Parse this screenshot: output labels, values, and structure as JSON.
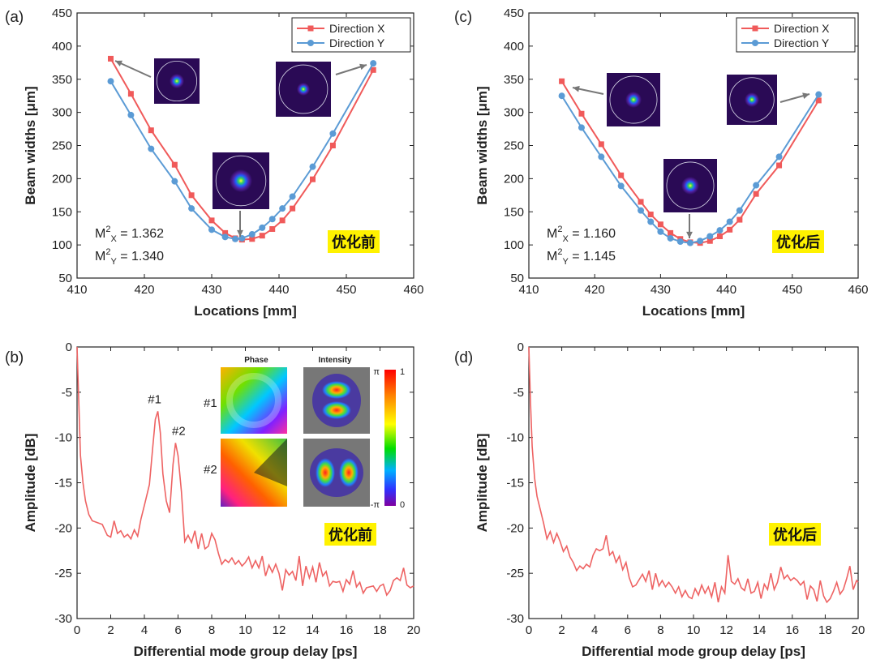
{
  "colors": {
    "direction_x": "#f05a5a",
    "direction_y": "#5b9bd5",
    "spectrum": "#ee6363",
    "highlight": "#fff200"
  },
  "chart_data": [
    {
      "panel": "(a)",
      "type": "line",
      "xlabel": "Locations [mm]",
      "ylabel": "Beam widths [μm]",
      "xlim": [
        410,
        460
      ],
      "ylim": [
        50,
        450
      ],
      "xticks": [
        "410",
        "420",
        "430",
        "440",
        "450",
        "460"
      ],
      "yticks": [
        "50",
        "100",
        "150",
        "200",
        "250",
        "300",
        "350",
        "400",
        "450"
      ],
      "legend": "top-right",
      "annotation": "优化前",
      "m2": {
        "x_label": "X",
        "x_value": "= 1.362",
        "y_label": "Y",
        "y_value": "= 1.340"
      },
      "series": [
        {
          "name": "Direction X",
          "x": [
            415,
            418,
            421,
            424.5,
            427,
            430,
            432,
            433.5,
            434.5,
            436,
            437.5,
            439,
            440.5,
            442,
            445,
            448,
            454
          ],
          "y": [
            381,
            328,
            273,
            221,
            175,
            137,
            118,
            110,
            108,
            109,
            114,
            124,
            137,
            155,
            199,
            250,
            364
          ]
        },
        {
          "name": "Direction Y",
          "x": [
            415,
            418,
            421,
            424.5,
            427,
            430,
            432,
            433.5,
            434.5,
            436,
            437.5,
            439,
            440.5,
            442,
            445,
            448,
            454
          ],
          "y": [
            347,
            296,
            245,
            196,
            155,
            123,
            112,
            109,
            110,
            116,
            126,
            139,
            155,
            173,
            218,
            268,
            374
          ]
        }
      ]
    },
    {
      "panel": "(c)",
      "type": "line",
      "xlabel": "Locations [mm]",
      "ylabel": "Beam widths [μm]",
      "xlim": [
        410,
        460
      ],
      "ylim": [
        50,
        450
      ],
      "xticks": [
        "410",
        "420",
        "430",
        "440",
        "450",
        "460"
      ],
      "yticks": [
        "50",
        "100",
        "150",
        "200",
        "250",
        "300",
        "350",
        "400",
        "450"
      ],
      "legend": "top-right",
      "annotation": "优化后",
      "m2": {
        "x_label": "X",
        "x_value": "= 1.160",
        "y_label": "Y",
        "y_value": "= 1.145"
      },
      "series": [
        {
          "name": "Direction X",
          "x": [
            415,
            418,
            421,
            424,
            427,
            428.5,
            430,
            431.5,
            433,
            434.5,
            436,
            437.5,
            439,
            440.5,
            442,
            444.5,
            448,
            454
          ],
          "y": [
            347,
            298,
            252,
            205,
            165,
            146,
            131,
            118,
            109,
            104,
            103,
            106,
            113,
            123,
            138,
            177,
            220,
            318
          ]
        },
        {
          "name": "Direction Y",
          "x": [
            415,
            418,
            421,
            424,
            427,
            428.5,
            430,
            431.5,
            433,
            434.5,
            436,
            437.5,
            439,
            440.5,
            442,
            444.5,
            448,
            454
          ],
          "y": [
            325,
            277,
            233,
            189,
            152,
            135,
            120,
            110,
            105,
            103,
            106,
            113,
            122,
            135,
            152,
            190,
            233,
            327
          ]
        }
      ]
    },
    {
      "panel": "(b)",
      "type": "line",
      "xlabel": "Differential mode group delay [ps]",
      "ylabel": "Amplitude [dB]",
      "xlim": [
        0,
        20
      ],
      "ylim": [
        -30,
        0
      ],
      "xticks": [
        "0",
        "2",
        "4",
        "6",
        "8",
        "10",
        "12",
        "14",
        "16",
        "18",
        "20"
      ],
      "yticks": [
        "-30",
        "-25",
        "-20",
        "-15",
        "-10",
        "-5",
        "0"
      ],
      "annotation": "优化前",
      "peaks": [
        {
          "label": "#1",
          "x": 4.8,
          "y": -7.1
        },
        {
          "label": "#2",
          "x": 5.85,
          "y": -10.6
        }
      ],
      "inset": {
        "phase_header": "Phase",
        "intensity_header": "Intensity",
        "row1": "#1",
        "row2": "#2",
        "cb_top": "π",
        "cb_bottom": "-π",
        "cb_max": "1",
        "cb_min": "0"
      },
      "series": [
        {
          "x": [
            0,
            0.1,
            0.2,
            0.35,
            0.5,
            0.7,
            0.9,
            1.2,
            1.5,
            1.8,
            2.0,
            2.2,
            2.4,
            2.6,
            2.8,
            3.0,
            3.2,
            3.4,
            3.6,
            3.8,
            4.0,
            4.3,
            4.5,
            4.65,
            4.8,
            4.95,
            5.1,
            5.3,
            5.5,
            5.7,
            5.85,
            6.0,
            6.2,
            6.4,
            6.6,
            6.8,
            7.0,
            7.2,
            7.4,
            7.6,
            7.8,
            8.0,
            8.2,
            8.4,
            8.6,
            8.8,
            9.0,
            9.2,
            9.4,
            9.6,
            9.8,
            10.0,
            10.2,
            10.4,
            10.6,
            10.8,
            11.0,
            11.2,
            11.4,
            11.6,
            11.8,
            12.0,
            12.2,
            12.4,
            12.6,
            12.8,
            13.0,
            13.2,
            13.4,
            13.6,
            13.8,
            14.0,
            14.2,
            14.4,
            14.6,
            14.8,
            15.0,
            15.2,
            15.4,
            15.6,
            15.8,
            16.0,
            16.2,
            16.4,
            16.6,
            16.8,
            17.0,
            17.2,
            17.4,
            17.6,
            17.8,
            18.0,
            18.2,
            18.4,
            18.6,
            18.8,
            19.0,
            19.2,
            19.4,
            19.6,
            19.8,
            20.0
          ],
          "y": [
            0,
            -6,
            -12,
            -15,
            -17,
            -18.5,
            -19.2,
            -19.4,
            -19.6,
            -20.8,
            -21.0,
            -19.2,
            -20.6,
            -20.3,
            -21.0,
            -20.7,
            -21.2,
            -20.2,
            -20.9,
            -19.0,
            -17.5,
            -15.2,
            -11.0,
            -8.0,
            -7.1,
            -9.5,
            -14.0,
            -17.0,
            -18.3,
            -13.0,
            -10.6,
            -12.0,
            -16.0,
            -21.5,
            -20.8,
            -21.6,
            -20.3,
            -22.3,
            -20.6,
            -22.3,
            -22.0,
            -20.6,
            -21.3,
            -22.8,
            -24.0,
            -23.5,
            -23.8,
            -23.3,
            -24.0,
            -23.6,
            -24.2,
            -23.8,
            -23.2,
            -24.4,
            -23.6,
            -24.4,
            -23.1,
            -25.3,
            -24.1,
            -24.9,
            -24.0,
            -25.0,
            -26.9,
            -24.6,
            -25.2,
            -24.8,
            -25.8,
            -23.1,
            -26.4,
            -24.2,
            -25.5,
            -24.3,
            -26.0,
            -23.8,
            -25.3,
            -24.8,
            -26.4,
            -25.9,
            -26.0,
            -25.9,
            -27.0,
            -25.7,
            -26.2,
            -24.7,
            -26.5,
            -26.0,
            -27.2,
            -26.6,
            -26.5,
            -26.4,
            -27.0,
            -26.4,
            -26.2,
            -27.4,
            -26.9,
            -25.8,
            -25.5,
            -25.8,
            -24.4,
            -26.3,
            -26.6,
            -26.4
          ]
        }
      ]
    },
    {
      "panel": "(d)",
      "type": "line",
      "xlabel": "Differential mode group delay [ps]",
      "ylabel": "Amplitude [dB]",
      "xlim": [
        0,
        20
      ],
      "ylim": [
        -30,
        0
      ],
      "xticks": [
        "0",
        "2",
        "4",
        "6",
        "8",
        "10",
        "12",
        "14",
        "16",
        "18",
        "20"
      ],
      "yticks": [
        "-30",
        "-25",
        "-20",
        "-15",
        "-10",
        "-5",
        "0"
      ],
      "annotation": "优化后",
      "series": [
        {
          "x": [
            0,
            0.1,
            0.2,
            0.35,
            0.5,
            0.7,
            0.9,
            1.1,
            1.3,
            1.5,
            1.7,
            1.9,
            2.1,
            2.3,
            2.5,
            2.7,
            2.9,
            3.1,
            3.3,
            3.5,
            3.7,
            3.9,
            4.1,
            4.3,
            4.5,
            4.7,
            4.9,
            5.1,
            5.3,
            5.5,
            5.7,
            5.9,
            6.1,
            6.3,
            6.5,
            6.7,
            6.9,
            7.1,
            7.3,
            7.5,
            7.7,
            7.9,
            8.1,
            8.3,
            8.5,
            8.7,
            8.9,
            9.1,
            9.3,
            9.5,
            9.7,
            9.9,
            10.1,
            10.3,
            10.5,
            10.7,
            10.9,
            11.1,
            11.3,
            11.5,
            11.7,
            11.9,
            12.1,
            12.3,
            12.5,
            12.7,
            12.9,
            13.1,
            13.3,
            13.5,
            13.7,
            13.9,
            14.1,
            14.3,
            14.5,
            14.7,
            14.9,
            15.1,
            15.3,
            15.5,
            15.7,
            15.9,
            16.1,
            16.3,
            16.5,
            16.7,
            16.9,
            17.1,
            17.3,
            17.5,
            17.7,
            17.9,
            18.1,
            18.3,
            18.5,
            18.7,
            18.9,
            19.1,
            19.3,
            19.5,
            19.7,
            19.9,
            20.0
          ],
          "y": [
            0,
            -6,
            -11,
            -14.5,
            -16.5,
            -18,
            -19.5,
            -21.2,
            -20.4,
            -21.6,
            -20.6,
            -21.5,
            -22.6,
            -22.0,
            -23.2,
            -23.8,
            -24.7,
            -24.2,
            -24.5,
            -24.0,
            -24.3,
            -23.0,
            -22.3,
            -22.5,
            -22.3,
            -20.8,
            -23.0,
            -22.6,
            -23.8,
            -23.1,
            -24.6,
            -23.8,
            -25.5,
            -26.5,
            -26.3,
            -25.7,
            -25.1,
            -25.9,
            -24.7,
            -26.8,
            -25.0,
            -26.4,
            -25.8,
            -26.5,
            -26.0,
            -26.5,
            -27.2,
            -26.5,
            -27.6,
            -26.9,
            -27.6,
            -27.8,
            -26.7,
            -27.4,
            -26.3,
            -27.2,
            -26.5,
            -27.6,
            -26.0,
            -28.2,
            -26.5,
            -27.2,
            -23.0,
            -25.9,
            -26.2,
            -25.6,
            -26.6,
            -26.9,
            -25.6,
            -27.2,
            -27.0,
            -26.0,
            -27.8,
            -26.2,
            -26.8,
            -25.0,
            -26.8,
            -26.0,
            -24.3,
            -25.6,
            -25.2,
            -25.8,
            -25.5,
            -25.8,
            -26.3,
            -25.9,
            -27.9,
            -26.4,
            -26.8,
            -28.1,
            -25.8,
            -27.5,
            -28.2,
            -27.8,
            -27.0,
            -26.0,
            -27.3,
            -26.8,
            -25.6,
            -24.2,
            -26.8,
            -25.8,
            -26.0
          ]
        }
      ]
    }
  ]
}
